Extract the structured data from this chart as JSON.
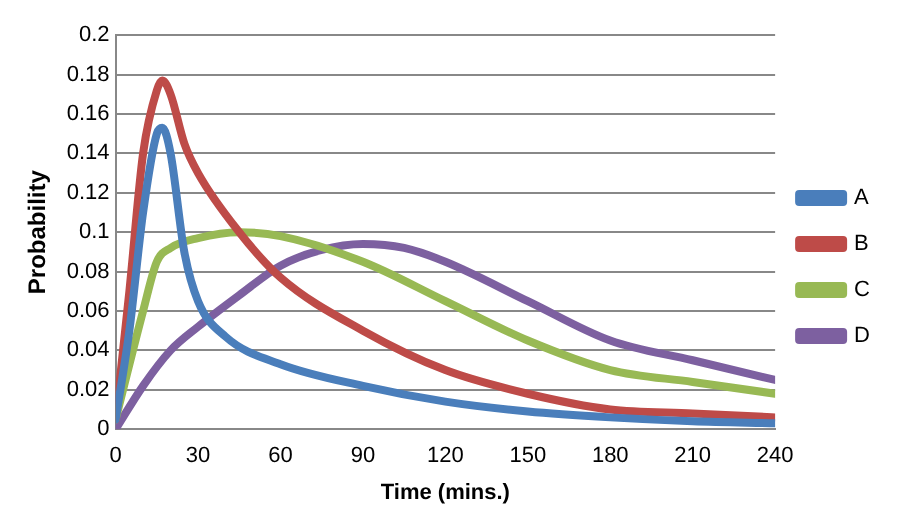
{
  "chart_data": {
    "type": "line",
    "xlabel": "Time (mins.)",
    "ylabel": "Probability",
    "xlim": [
      0,
      240
    ],
    "xticks": [
      0,
      30,
      60,
      90,
      120,
      150,
      180,
      210,
      240
    ],
    "ylim": [
      0,
      0.2
    ],
    "yticks": [
      0,
      0.02,
      0.04,
      0.06,
      0.08,
      0.1,
      0.12,
      0.14,
      0.16,
      0.18,
      0.2
    ],
    "grid": "y",
    "legend": "right",
    "marker": "none",
    "line_style": "solid",
    "series": [
      {
        "name": "A",
        "color": "#4a7ebb",
        "x": [
          0,
          5,
          10,
          15,
          17,
          20,
          25,
          30,
          40,
          60,
          90,
          120,
          150,
          180,
          210,
          240
        ],
        "values": [
          0.005,
          0.05,
          0.11,
          0.15,
          0.153,
          0.14,
          0.09,
          0.065,
          0.047,
          0.033,
          0.022,
          0.014,
          0.009,
          0.006,
          0.004,
          0.003
        ]
      },
      {
        "name": "B",
        "color": "#be4b48",
        "x": [
          0,
          5,
          10,
          15,
          17,
          20,
          25,
          30,
          45,
          60,
          90,
          120,
          150,
          180,
          210,
          240
        ],
        "values": [
          0.005,
          0.07,
          0.14,
          0.172,
          0.177,
          0.17,
          0.145,
          0.13,
          0.1,
          0.077,
          0.05,
          0.03,
          0.018,
          0.01,
          0.008,
          0.006
        ]
      },
      {
        "name": "C",
        "color": "#98b954",
        "x": [
          0,
          10,
          15,
          20,
          30,
          45,
          60,
          90,
          120,
          150,
          180,
          210,
          240
        ],
        "values": [
          0.005,
          0.06,
          0.085,
          0.092,
          0.097,
          0.1,
          0.098,
          0.085,
          0.065,
          0.045,
          0.03,
          0.024,
          0.018
        ]
      },
      {
        "name": "D",
        "color": "#7d60a0",
        "x": [
          0,
          10,
          20,
          30,
          45,
          60,
          75,
          90,
          105,
          120,
          150,
          180,
          210,
          240
        ],
        "values": [
          0,
          0.022,
          0.04,
          0.052,
          0.068,
          0.083,
          0.091,
          0.094,
          0.092,
          0.085,
          0.065,
          0.045,
          0.035,
          0.025
        ]
      }
    ]
  }
}
